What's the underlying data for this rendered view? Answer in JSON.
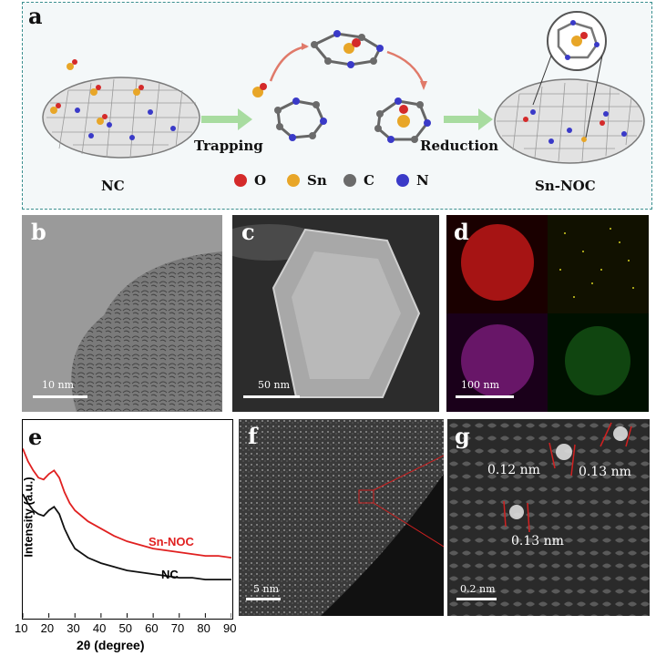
{
  "panel_a": {
    "label": "a",
    "nc_label": "NC",
    "trapping_label": "Trapping",
    "reduction_label": "Reduction",
    "product_label": "Sn-NOC",
    "legend": [
      {
        "symbol": "O",
        "color": "#d42a2a"
      },
      {
        "symbol": "Sn",
        "color": "#e8a628"
      },
      {
        "symbol": "C",
        "color": "#6b6b6b"
      },
      {
        "symbol": "N",
        "color": "#3a3ac8"
      }
    ]
  },
  "panel_b": {
    "label": "b",
    "scale": "10 nm"
  },
  "panel_c": {
    "label": "c",
    "scale": "50 nm"
  },
  "panel_d": {
    "label": "d",
    "scale": "100 nm"
  },
  "panel_f": {
    "label": "f",
    "scale": "5 nm"
  },
  "panel_g": {
    "label": "g",
    "scale": "0.2 nm",
    "distances": [
      "0.12 nm",
      "0.13 nm",
      "0.13 nm"
    ]
  },
  "panel_e": {
    "label": "e"
  },
  "chart_data": {
    "type": "line",
    "xlabel": "2θ (degree)",
    "ylabel": "Intensity (a.u.)",
    "xlim": [
      10,
      90
    ],
    "x_ticks": [
      "10",
      "20",
      "30",
      "40",
      "50",
      "60",
      "70",
      "80",
      "90"
    ],
    "series": [
      {
        "name": "Sn-NOC",
        "color": "#e02020",
        "x": [
          10,
          12,
          14,
          16,
          18,
          20,
          22,
          24,
          26,
          28,
          30,
          35,
          40,
          45,
          50,
          55,
          60,
          65,
          70,
          75,
          80,
          85,
          90
        ],
        "y": [
          1.0,
          0.93,
          0.88,
          0.84,
          0.83,
          0.86,
          0.88,
          0.84,
          0.76,
          0.7,
          0.66,
          0.6,
          0.56,
          0.52,
          0.49,
          0.47,
          0.45,
          0.44,
          0.43,
          0.42,
          0.41,
          0.41,
          0.4
        ]
      },
      {
        "name": "NC",
        "color": "#111111",
        "x": [
          10,
          12,
          14,
          16,
          18,
          20,
          22,
          24,
          26,
          28,
          30,
          35,
          40,
          45,
          50,
          55,
          60,
          65,
          70,
          75,
          80,
          85,
          90
        ],
        "y": [
          0.75,
          0.7,
          0.66,
          0.64,
          0.63,
          0.66,
          0.68,
          0.64,
          0.56,
          0.5,
          0.45,
          0.4,
          0.37,
          0.35,
          0.33,
          0.32,
          0.31,
          0.3,
          0.29,
          0.29,
          0.28,
          0.28,
          0.28
        ]
      }
    ]
  }
}
